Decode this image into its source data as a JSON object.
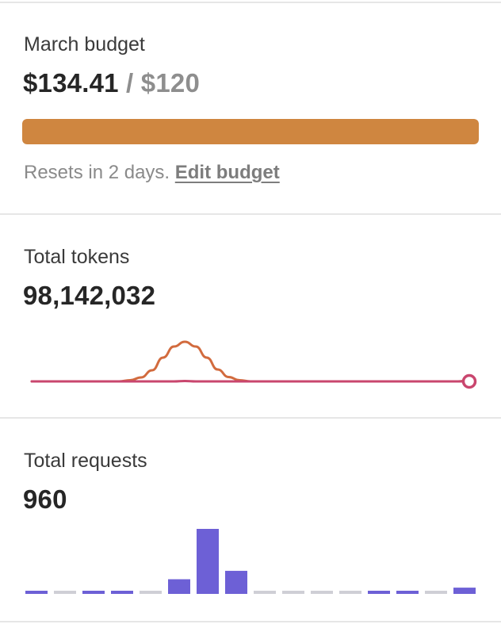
{
  "budget": {
    "label": "March budget",
    "spent": "$134.41",
    "separator": " / ",
    "limit": "$120",
    "progress_fraction": 1.0,
    "progress_color": "#cf8640",
    "reset_text": "Resets in 2 days.",
    "edit_link": "Edit budget"
  },
  "tokens": {
    "label": "Total tokens",
    "value": "98,142,032",
    "chart_data": {
      "type": "line",
      "grid": false,
      "series": [
        {
          "color": "#d26b3e",
          "values": [
            0,
            0,
            0,
            0,
            0,
            0,
            0,
            0,
            0,
            0.03,
            0.1,
            0.28,
            0.6,
            0.88,
            1.0,
            0.88,
            0.6,
            0.3,
            0.11,
            0.03,
            0,
            0,
            0,
            0,
            0,
            0,
            0,
            0,
            0,
            0,
            0,
            0,
            0,
            0,
            0,
            0,
            0,
            0,
            0,
            0,
            0.03
          ]
        },
        {
          "color": "#c9466e",
          "values": [
            0,
            0,
            0,
            0,
            0,
            0,
            0,
            0,
            0,
            0,
            0,
            0,
            0,
            0,
            0.01,
            0,
            0,
            0,
            0,
            0,
            0,
            0,
            0,
            0,
            0,
            0,
            0,
            0,
            0,
            0,
            0,
            0,
            0,
            0,
            0,
            0,
            0,
            0,
            0,
            0,
            0
          ]
        }
      ],
      "endpoint_marker": true
    }
  },
  "requests": {
    "label": "Total requests",
    "value": "960",
    "chart_data": {
      "type": "bar",
      "grid": false,
      "active_color": "#6d60d6",
      "empty_color": "#cfcfd6",
      "values": [
        1,
        0,
        1,
        1,
        0,
        7,
        31,
        11,
        0,
        0,
        0,
        0,
        1,
        1,
        0,
        3
      ]
    }
  }
}
